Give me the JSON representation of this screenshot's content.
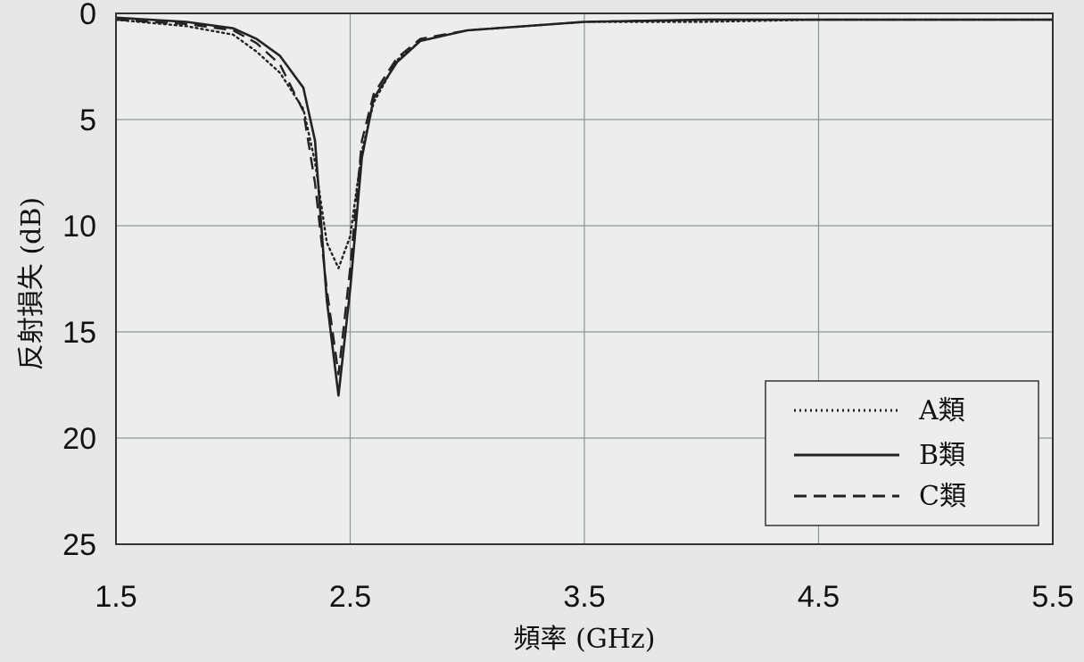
{
  "chart_data": {
    "type": "line",
    "title": "",
    "xlabel": "頻率 (GHz)",
    "ylabel": "反射損失 (dB)",
    "xlim": [
      1.5,
      5.5
    ],
    "ylim": [
      0,
      25
    ],
    "y_inverted": true,
    "grid": true,
    "legend_position": "bottom-right",
    "xticks": [
      "1.5",
      "2.5",
      "3.5",
      "4.5",
      "5.5"
    ],
    "yticks": [
      "0",
      "5",
      "10",
      "15",
      "20",
      "25"
    ],
    "series": [
      {
        "name": "A類",
        "style": "dotted",
        "color": "#222222",
        "x": [
          1.5,
          1.8,
          2.0,
          2.1,
          2.2,
          2.3,
          2.35,
          2.4,
          2.45,
          2.5,
          2.55,
          2.6,
          2.7,
          2.8,
          3.0,
          3.5,
          4.0,
          4.5,
          5.0,
          5.5
        ],
        "y": [
          0.3,
          0.6,
          1.0,
          1.8,
          2.8,
          4.5,
          7.0,
          10.8,
          12.0,
          10.5,
          6.5,
          4.2,
          2.2,
          1.3,
          0.8,
          0.4,
          0.4,
          0.3,
          0.3,
          0.3
        ]
      },
      {
        "name": "B類",
        "style": "solid",
        "color": "#222222",
        "x": [
          1.5,
          1.8,
          2.0,
          2.1,
          2.2,
          2.3,
          2.35,
          2.4,
          2.45,
          2.5,
          2.55,
          2.6,
          2.7,
          2.8,
          3.0,
          3.5,
          4.0,
          4.5,
          5.0,
          5.5
        ],
        "y": [
          0.2,
          0.4,
          0.7,
          1.2,
          2.0,
          3.5,
          6.0,
          13.5,
          18.0,
          13.0,
          6.8,
          4.0,
          2.3,
          1.3,
          0.8,
          0.4,
          0.3,
          0.3,
          0.3,
          0.3
        ]
      },
      {
        "name": "C類",
        "style": "dashed",
        "color": "#222222",
        "x": [
          1.5,
          1.8,
          2.0,
          2.1,
          2.2,
          2.3,
          2.35,
          2.4,
          2.45,
          2.5,
          2.55,
          2.6,
          2.7,
          2.8,
          3.0,
          3.5,
          4.0,
          4.5,
          5.0,
          5.5
        ],
        "y": [
          0.3,
          0.5,
          0.8,
          1.4,
          2.4,
          4.6,
          8.0,
          13.0,
          17.0,
          12.0,
          6.0,
          3.8,
          2.1,
          1.2,
          0.8,
          0.4,
          0.3,
          0.3,
          0.3,
          0.3
        ]
      }
    ]
  }
}
